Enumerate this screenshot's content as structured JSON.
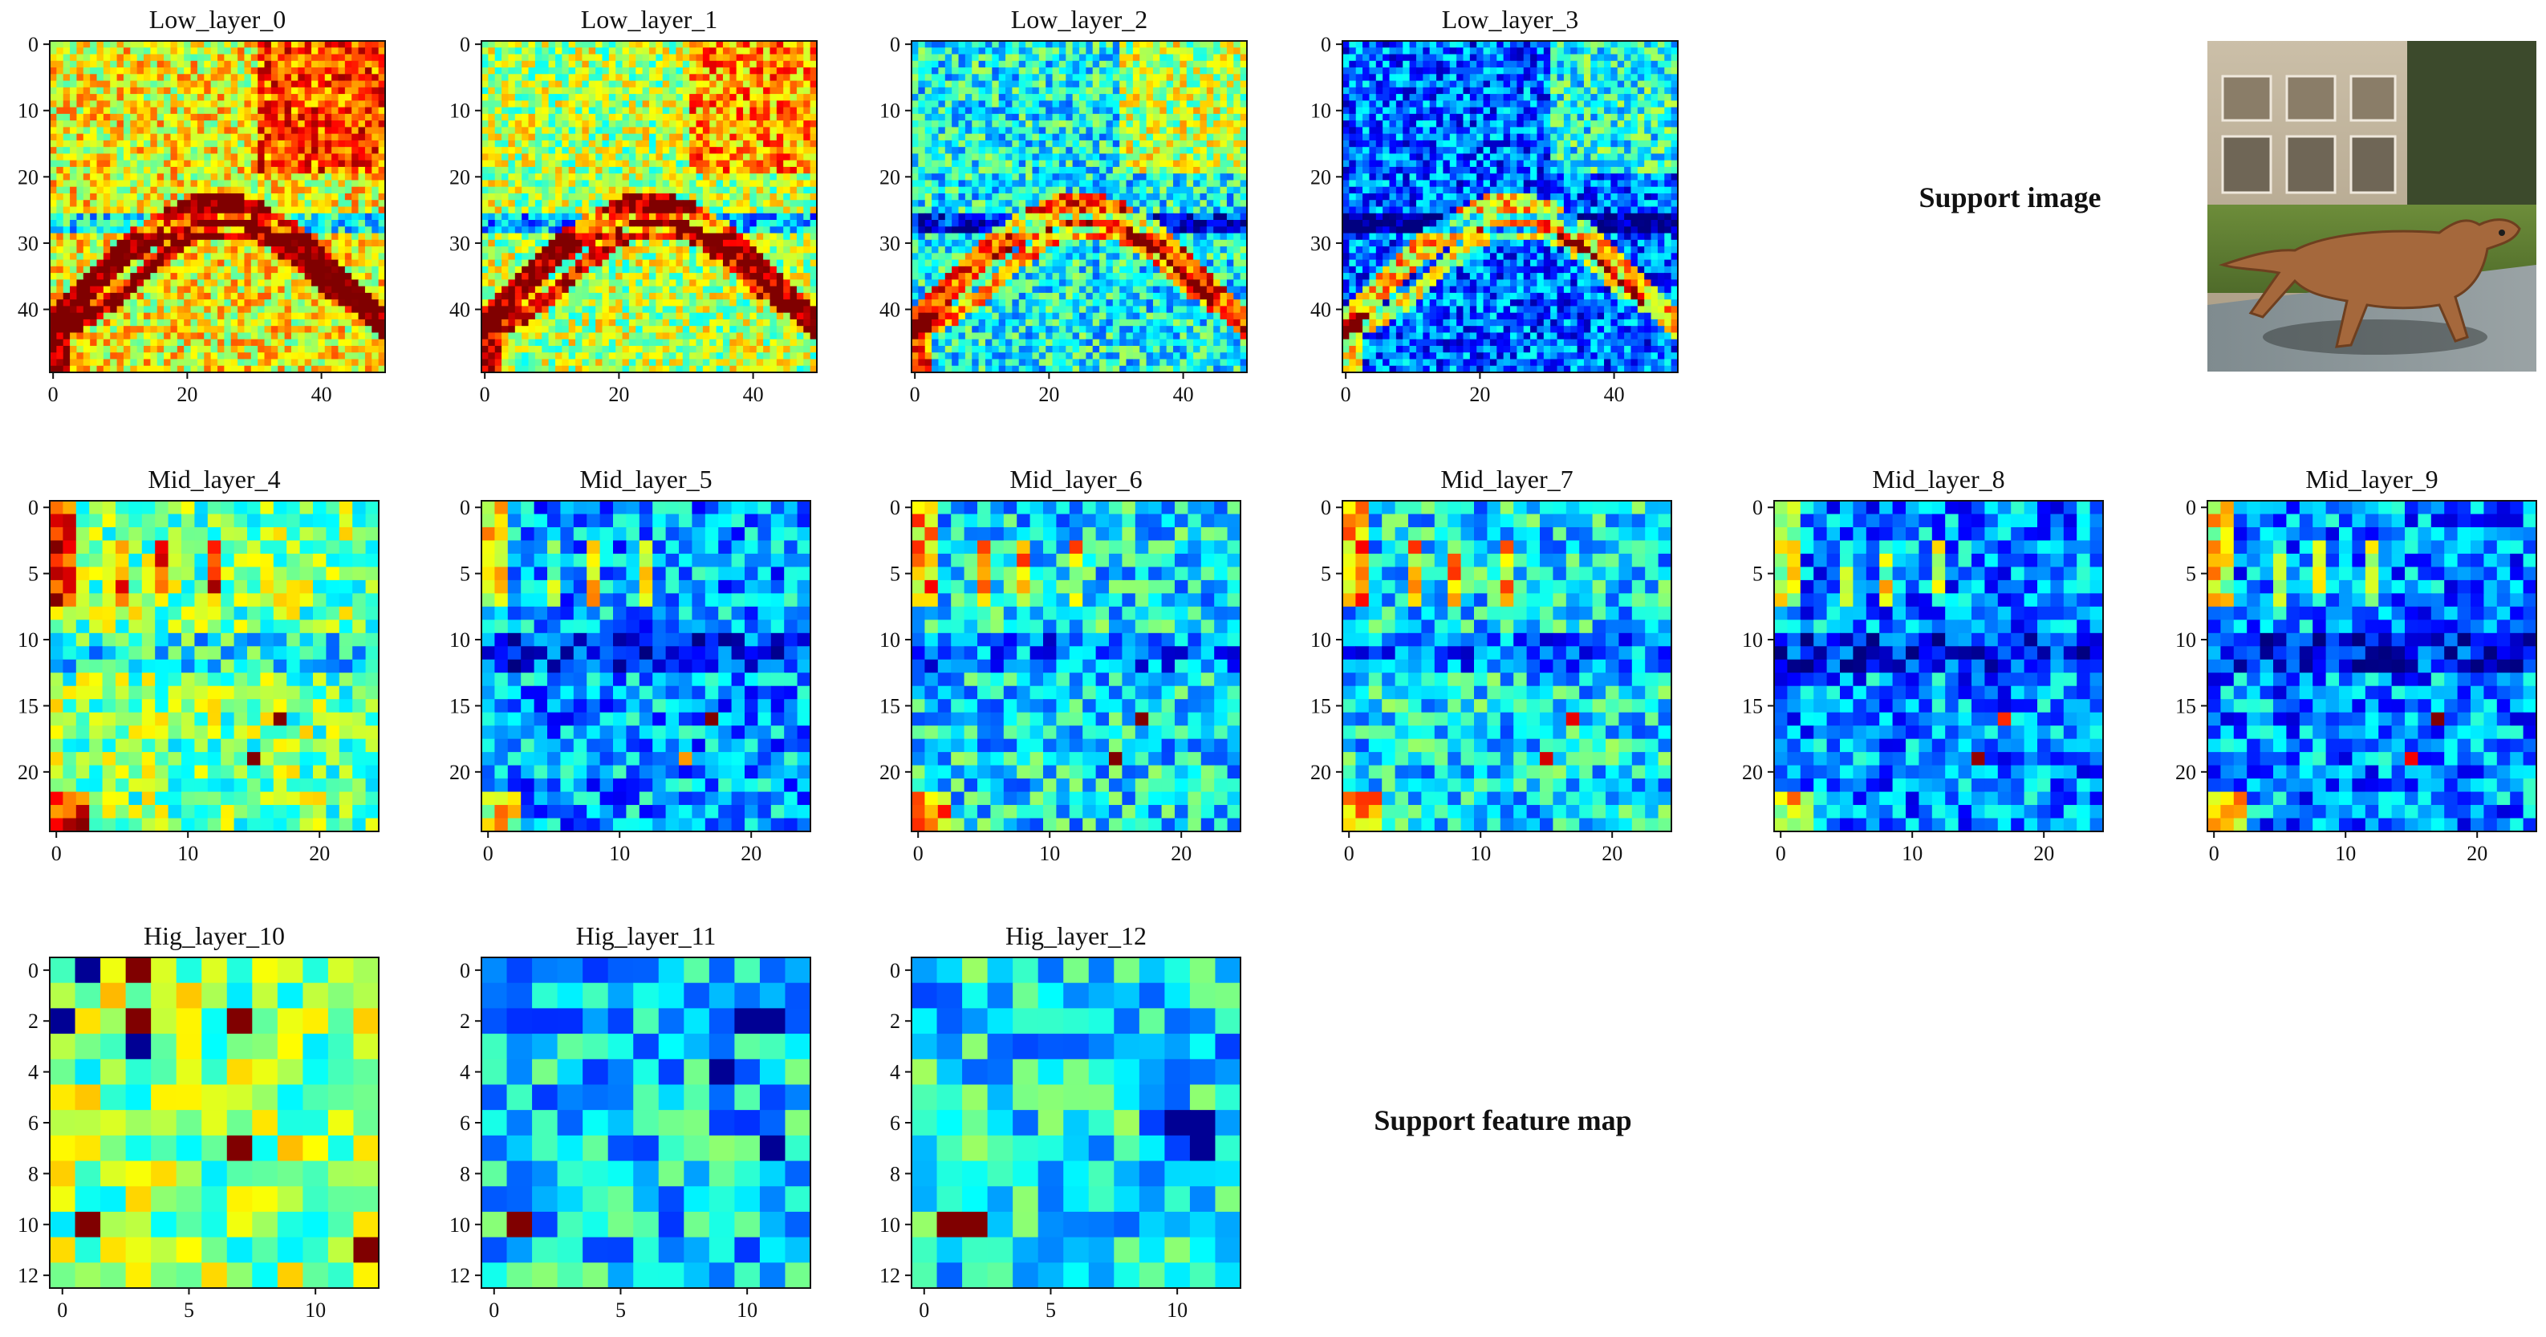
{
  "captions": {
    "support_image": "Support image",
    "support_feature_map": "Support feature map"
  },
  "colormap": "jet",
  "chart_data": [
    {
      "type": "heatmap",
      "title": "Low_layer_0",
      "size": 50,
      "xticks": [
        0,
        20,
        40
      ],
      "yticks": [
        0,
        10,
        20,
        30,
        40
      ],
      "pattern": "low",
      "seed": 11,
      "intensity": 0.62
    },
    {
      "type": "heatmap",
      "title": "Low_layer_1",
      "size": 50,
      "xticks": [
        0,
        20,
        40
      ],
      "yticks": [
        0,
        10,
        20,
        30,
        40
      ],
      "pattern": "low",
      "seed": 23,
      "intensity": 0.55
    },
    {
      "type": "heatmap",
      "title": "Low_layer_2",
      "size": 50,
      "xticks": [
        0,
        20,
        40
      ],
      "yticks": [
        0,
        10,
        20,
        30,
        40
      ],
      "pattern": "low",
      "seed": 37,
      "intensity": 0.38
    },
    {
      "type": "heatmap",
      "title": "Low_layer_3",
      "size": 50,
      "xticks": [
        0,
        20,
        40
      ],
      "yticks": [
        0,
        10,
        20,
        30,
        40
      ],
      "pattern": "low",
      "seed": 41,
      "intensity": 0.22
    },
    {
      "type": "heatmap",
      "title": "Mid_layer_4",
      "size": 25,
      "xticks": [
        0,
        10,
        20
      ],
      "yticks": [
        0,
        5,
        10,
        15,
        20
      ],
      "pattern": "mid",
      "seed": 53,
      "intensity": 0.5
    },
    {
      "type": "heatmap",
      "title": "Mid_layer_5",
      "size": 25,
      "xticks": [
        0,
        10,
        20
      ],
      "yticks": [
        0,
        5,
        10,
        15,
        20
      ],
      "pattern": "mid",
      "seed": 61,
      "intensity": 0.28
    },
    {
      "type": "heatmap",
      "title": "Mid_layer_6",
      "size": 25,
      "xticks": [
        0,
        10,
        20
      ],
      "yticks": [
        0,
        5,
        10,
        15,
        20
      ],
      "pattern": "mid",
      "seed": 67,
      "intensity": 0.36
    },
    {
      "type": "heatmap",
      "title": "Mid_layer_7",
      "size": 25,
      "xticks": [
        0,
        10,
        20
      ],
      "yticks": [
        0,
        5,
        10,
        15,
        20
      ],
      "pattern": "mid",
      "seed": 71,
      "intensity": 0.36
    },
    {
      "type": "heatmap",
      "title": "Mid_layer_8",
      "size": 25,
      "xticks": [
        0,
        10,
        20
      ],
      "yticks": [
        0,
        5,
        10,
        15,
        20
      ],
      "pattern": "mid",
      "seed": 79,
      "intensity": 0.26
    },
    {
      "type": "heatmap",
      "title": "Mid_layer_9",
      "size": 25,
      "xticks": [
        0,
        10,
        20
      ],
      "yticks": [
        0,
        5,
        10,
        15,
        20
      ],
      "pattern": "mid",
      "seed": 83,
      "intensity": 0.26
    },
    {
      "type": "heatmap",
      "title": "Hig_layer_10",
      "size": 13,
      "xticks": [
        0,
        5,
        10
      ],
      "yticks": [
        0,
        2,
        4,
        6,
        8,
        10,
        12
      ],
      "pattern": "high",
      "seed": 89,
      "intensity": 0.52,
      "hot_cells": [
        [
          10,
          1
        ],
        [
          0,
          3
        ],
        [
          2,
          3
        ],
        [
          2,
          7
        ],
        [
          7,
          7
        ],
        [
          11,
          12
        ]
      ],
      "cold_cells": [
        [
          3,
          3
        ],
        [
          0,
          1
        ],
        [
          2,
          0
        ]
      ]
    },
    {
      "type": "heatmap",
      "title": "Hig_layer_11",
      "size": 13,
      "xticks": [
        0,
        5,
        10
      ],
      "yticks": [
        0,
        2,
        4,
        6,
        8,
        10,
        12
      ],
      "pattern": "high",
      "seed": 97,
      "intensity": 0.34,
      "hot_cells": [
        [
          10,
          1
        ]
      ],
      "cold_cells": [
        [
          2,
          10
        ],
        [
          7,
          11
        ],
        [
          2,
          11
        ],
        [
          4,
          9
        ]
      ]
    },
    {
      "type": "heatmap",
      "title": "Hig_layer_12",
      "size": 13,
      "xticks": [
        0,
        5,
        10
      ],
      "yticks": [
        0,
        2,
        4,
        6,
        8,
        10,
        12
      ],
      "pattern": "high",
      "seed": 101,
      "intensity": 0.36,
      "hot_cells": [
        [
          10,
          1
        ],
        [
          10,
          2
        ]
      ],
      "cold_cells": [
        [
          6,
          11
        ],
        [
          7,
          11
        ],
        [
          6,
          10
        ]
      ]
    }
  ]
}
